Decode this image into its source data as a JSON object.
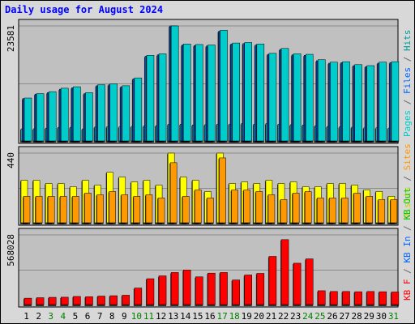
{
  "chart_data": {
    "title": "Daily usage for August 2024",
    "type": "bar",
    "days": [
      "1",
      "2",
      "3",
      "4",
      "5",
      "6",
      "7",
      "8",
      "9",
      "10",
      "11",
      "12",
      "13",
      "14",
      "15",
      "16",
      "17",
      "18",
      "19",
      "20",
      "21",
      "22",
      "23",
      "24",
      "25",
      "26",
      "27",
      "28",
      "29",
      "30",
      "31"
    ],
    "weekend_days": [
      "3",
      "4",
      "10",
      "11",
      "17",
      "18",
      "24",
      "25",
      "31"
    ],
    "panels": [
      {
        "id": "hits_panel",
        "tick_label": "23581",
        "ylim": [
          0,
          23581
        ],
        "series": [
          {
            "name": "Pages",
            "color": "#00ccff",
            "values": [
              2620,
              2640,
              2780,
              2920,
              2940,
              2620,
              3000,
              3060,
              3040,
              3130,
              3220,
              3290,
              3560,
              3570,
              3420,
              3470,
              3590,
              3600,
              3710,
              3570,
              3700,
              3590,
              3470,
              3420,
              3250,
              3120,
              3040,
              2960,
              2830,
              2840,
              2780
            ]
          },
          {
            "name": "Files",
            "color": "#0066ff",
            "values": [
              8800,
              9700,
              10000,
              10700,
              11000,
              9800,
              11400,
              11600,
              11200,
              12800,
              17400,
              17700,
              23581,
              19700,
              19600,
              19500,
              22500,
              19900,
              20000,
              19700,
              17800,
              18800,
              17700,
              17600,
              16500,
              16000,
              16100,
              15500,
              15300,
              16000,
              16100
            ]
          },
          {
            "name": "Hits",
            "color": "#00cccc",
            "values": [
              8900,
              9800,
              10200,
              10900,
              11200,
              10000,
              11600,
              11800,
              11400,
              13000,
              17600,
              17900,
              23581,
              19900,
              19800,
              19700,
              22700,
              20100,
              20200,
              19900,
              18000,
              19000,
              17900,
              17800,
              16700,
              16200,
              16300,
              15700,
              15500,
              16200,
              16300
            ]
          }
        ]
      },
      {
        "id": "visits_panel",
        "tick_label": "440",
        "ylim": [
          0,
          440
        ],
        "series": [
          {
            "name": "Visits",
            "color": "#ffff00",
            "values": [
              270,
              270,
              250,
              250,
              230,
              270,
              240,
              320,
              290,
              260,
              270,
              240,
              440,
              290,
              270,
              200,
              440,
              250,
              260,
              250,
              270,
              250,
              260,
              230,
              230,
              250,
              250,
              240,
              210,
              200,
              170
            ]
          },
          {
            "name": "Sites",
            "color": "#ff9900",
            "values": [
              170,
              170,
              170,
              170,
              170,
              190,
              180,
              200,
              180,
              170,
              180,
              160,
              380,
              170,
              210,
              160,
              410,
              210,
              210,
              200,
              180,
              150,
              190,
              200,
              160,
              160,
              160,
              190,
              170,
              150,
              150
            ]
          }
        ]
      },
      {
        "id": "kbytes_panel",
        "tick_label": "568028",
        "ylim": [
          0,
          568028
        ],
        "series": [
          {
            "name": "KB Out",
            "color": "#00cc00",
            "values": [
              0,
              0,
              0,
              0,
              0,
              0,
              0,
              0,
              0,
              0,
              0,
              0,
              0,
              0,
              0,
              0,
              0,
              0,
              0,
              0,
              0,
              0,
              0,
              0,
              0,
              0,
              0,
              0,
              0,
              0,
              0
            ]
          },
          {
            "name": "KB In",
            "color": "#0066ff",
            "values": [
              0,
              0,
              0,
              0,
              0,
              0,
              0,
              0,
              0,
              0,
              0,
              0,
              0,
              0,
              0,
              0,
              0,
              0,
              0,
              0,
              0,
              0,
              0,
              0,
              0,
              0,
              0,
              0,
              0,
              0,
              0
            ]
          },
          {
            "name": "KB F",
            "color": "#ff0000",
            "values": [
              58000,
              62000,
              65000,
              66000,
              72000,
              70000,
              75000,
              78000,
              82000,
              140000,
              215000,
              238000,
              265000,
              285000,
              230000,
              260000,
              265000,
              205000,
              245000,
              258000,
              395000,
              530000,
              340000,
              375000,
              118000,
              112000,
              112000,
              110000,
              112000,
              110000,
              108000
            ]
          }
        ]
      }
    ],
    "legend": [
      {
        "panel": "hits_panel",
        "parts": [
          {
            "text": "Pages",
            "color": "#00cccc"
          },
          {
            "text": " / ",
            "color": "#666666"
          },
          {
            "text": "Files",
            "color": "#0066ff"
          },
          {
            "text": " / ",
            "color": "#666666"
          },
          {
            "text": "Hits",
            "color": "#009999"
          }
        ]
      },
      {
        "panel": "visits_panel",
        "parts": [
          {
            "text": "Visits",
            "color": "#cccc00"
          },
          {
            "text": " / ",
            "color": "#666666"
          },
          {
            "text": "Sites",
            "color": "#ff9900"
          }
        ]
      },
      {
        "panel": "kbytes_panel",
        "parts": [
          {
            "text": "KB F",
            "color": "#ff0000"
          },
          {
            "text": " / ",
            "color": "#666666"
          },
          {
            "text": "KB In",
            "color": "#0066ff"
          },
          {
            "text": " / ",
            "color": "#666666"
          },
          {
            "text": "KB Out",
            "color": "#00cc00"
          }
        ]
      }
    ],
    "grid": true,
    "legend_placement": "right-vertical"
  },
  "colors": {
    "background": "#d8d8d8",
    "plot_area": "#c0c0c0",
    "gridline": "#000000",
    "title": "#0000ff",
    "weekday_label": "#000000",
    "weekend_label": "#008000"
  }
}
